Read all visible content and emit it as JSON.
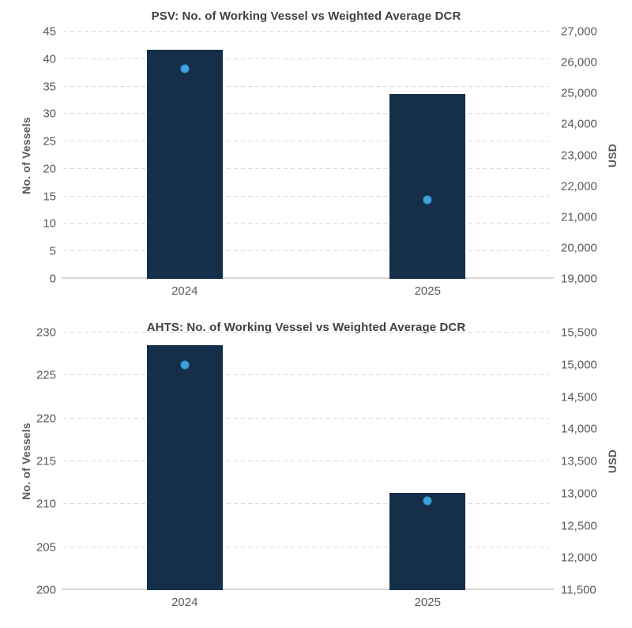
{
  "page": {
    "background": "#ffffff"
  },
  "colors": {
    "bar": "#152e49",
    "dot": "#3fa2dc",
    "dot_border": "#2d8ec9",
    "grid": "#d9d9d9",
    "baseline": "#d7d7d7",
    "tick_text": "#595959",
    "title_text": "#404040"
  },
  "chart_data": [
    {
      "type": "bar",
      "subtype": "bar-with-point-overlay",
      "title": "PSV: No. of Working Vessel vs Weighted Average DCR",
      "categories": [
        "2024",
        "2025"
      ],
      "series": [
        {
          "name": "No. of Working Vessels",
          "plot_as": "bar",
          "axis": "left",
          "values": [
            41.7,
            33.6
          ]
        },
        {
          "name": "Weighted Average DCR (USD)",
          "plot_as": "point",
          "axis": "right",
          "values": [
            25800,
            21550
          ]
        }
      ],
      "left_axis": {
        "label": "No. of Vessels",
        "min": 0,
        "max": 45,
        "step": 5
      },
      "right_axis": {
        "label": "USD",
        "min": 19000,
        "max": 27000,
        "step": 1000
      },
      "grid": "horizontal dashed at left-axis ticks, solid baseline",
      "legend": "none"
    },
    {
      "type": "bar",
      "subtype": "bar-with-point-overlay",
      "title": "AHTS: No. of Working Vessel vs Weighted Average DCR",
      "categories": [
        "2024",
        "2025"
      ],
      "series": [
        {
          "name": "No. of Working Vessels",
          "plot_as": "bar",
          "axis": "left",
          "values": [
            228.5,
            211.3
          ]
        },
        {
          "name": "Weighted Average DCR (USD)",
          "plot_as": "point",
          "axis": "right",
          "values": [
            15000,
            12890
          ]
        }
      ],
      "left_axis": {
        "label": "No. of Vessels",
        "min": 200,
        "max": 230,
        "step": 5
      },
      "right_axis": {
        "label": "USD",
        "min": 11500,
        "max": 15500,
        "step": 500
      },
      "grid": "horizontal dashed at left-axis ticks, solid baseline",
      "legend": "none"
    }
  ]
}
